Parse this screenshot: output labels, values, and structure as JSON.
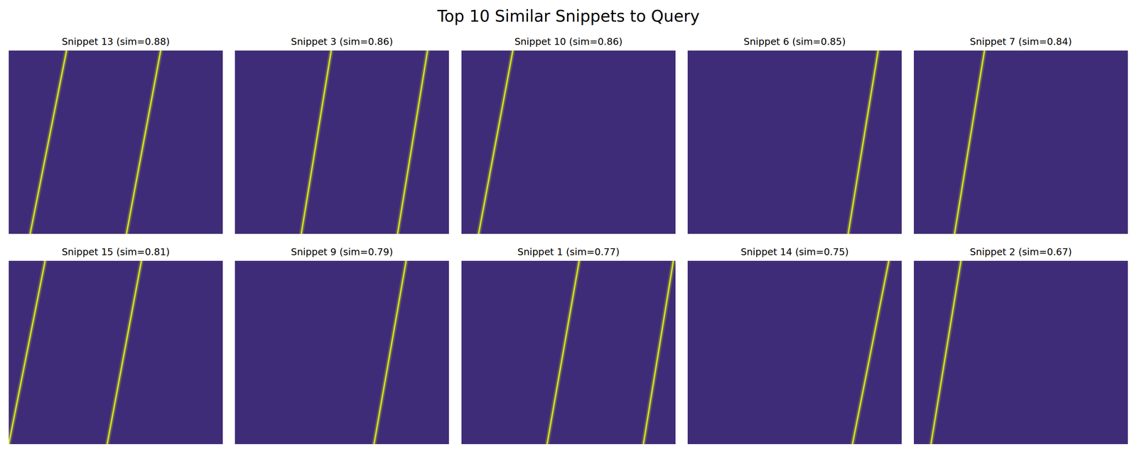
{
  "title": "Top 10 Similar Snippets to Query",
  "chart_data": [
    {
      "type": "line",
      "title": "Snippet 13 (sim=0.88)",
      "xlim": [
        0,
        1
      ],
      "ylim": [
        0,
        1
      ],
      "tick_labels": false,
      "color": "#d2e21b",
      "series": [
        {
          "x": [
            0.1,
            0.27
          ],
          "values": [
            0,
            1
          ]
        },
        {
          "x": [
            0.55,
            0.71
          ],
          "values": [
            0,
            1
          ]
        }
      ]
    },
    {
      "type": "line",
      "title": "Snippet 3 (sim=0.86)",
      "xlim": [
        0,
        1
      ],
      "ylim": [
        0,
        1
      ],
      "tick_labels": false,
      "color": "#d2e21b",
      "series": [
        {
          "x": [
            0.31,
            0.45
          ],
          "values": [
            0,
            1
          ]
        },
        {
          "x": [
            0.76,
            0.9
          ],
          "values": [
            0,
            1
          ]
        }
      ]
    },
    {
      "type": "line",
      "title": "Snippet 10 (sim=0.86)",
      "xlim": [
        0,
        1
      ],
      "ylim": [
        0,
        1
      ],
      "tick_labels": false,
      "color": "#d2e21b",
      "series": [
        {
          "x": [
            0.08,
            0.24
          ],
          "values": [
            0,
            1
          ]
        }
      ]
    },
    {
      "type": "line",
      "title": "Snippet 6 (sim=0.85)",
      "xlim": [
        0,
        1
      ],
      "ylim": [
        0,
        1
      ],
      "tick_labels": false,
      "color": "#d2e21b",
      "series": [
        {
          "x": [
            0.75,
            0.89
          ],
          "values": [
            0,
            1
          ]
        }
      ]
    },
    {
      "type": "line",
      "title": "Snippet 7 (sim=0.84)",
      "xlim": [
        0,
        1
      ],
      "ylim": [
        0,
        1
      ],
      "tick_labels": false,
      "color": "#d2e21b",
      "series": [
        {
          "x": [
            0.19,
            0.33
          ],
          "values": [
            0,
            1
          ]
        }
      ]
    },
    {
      "type": "line",
      "title": "Snippet 15 (sim=0.81)",
      "xlim": [
        0,
        1
      ],
      "ylim": [
        0,
        1
      ],
      "tick_labels": false,
      "color": "#d2e21b",
      "series": [
        {
          "x": [
            0.0,
            0.17
          ],
          "values": [
            0,
            1
          ]
        },
        {
          "x": [
            0.46,
            0.62
          ],
          "values": [
            0,
            1
          ]
        }
      ]
    },
    {
      "type": "line",
      "title": "Snippet 9 (sim=0.79)",
      "xlim": [
        0,
        1
      ],
      "ylim": [
        0,
        1
      ],
      "tick_labels": false,
      "color": "#d2e21b",
      "series": [
        {
          "x": [
            0.65,
            0.8
          ],
          "values": [
            0,
            1
          ]
        }
      ]
    },
    {
      "type": "line",
      "title": "Snippet 1 (sim=0.77)",
      "xlim": [
        0,
        1
      ],
      "ylim": [
        0,
        1
      ],
      "tick_labels": false,
      "color": "#d2e21b",
      "series": [
        {
          "x": [
            0.4,
            0.55
          ],
          "values": [
            0,
            1
          ]
        },
        {
          "x": [
            0.85,
            0.99
          ],
          "values": [
            0,
            1
          ]
        }
      ]
    },
    {
      "type": "line",
      "title": "Snippet 14 (sim=0.75)",
      "xlim": [
        0,
        1
      ],
      "ylim": [
        0,
        1
      ],
      "tick_labels": false,
      "color": "#d2e21b",
      "series": [
        {
          "x": [
            0.77,
            0.94
          ],
          "values": [
            0,
            1
          ]
        }
      ]
    },
    {
      "type": "line",
      "title": "Snippet 2 (sim=0.67)",
      "xlim": [
        0,
        1
      ],
      "ylim": [
        0,
        1
      ],
      "tick_labels": false,
      "color": "#d2e21b",
      "series": [
        {
          "x": [
            0.08,
            0.22
          ],
          "values": [
            0,
            1
          ]
        }
      ]
    }
  ]
}
